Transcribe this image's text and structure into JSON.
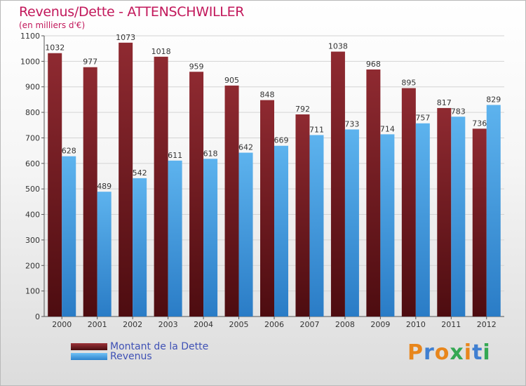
{
  "chart_data": {
    "type": "bar",
    "title": "Revenus/Dette - ATTENSCHWILLER",
    "subtitle": "(en milliers d'€)",
    "categories": [
      "2000",
      "2001",
      "2002",
      "2003",
      "2004",
      "2005",
      "2006",
      "2007",
      "2008",
      "2009",
      "2010",
      "2011",
      "2012"
    ],
    "series": [
      {
        "name": "Montant de la Dette",
        "color": "#7b1e24",
        "values": [
          1032,
          977,
          1073,
          1018,
          959,
          905,
          848,
          792,
          1038,
          968,
          895,
          817,
          736
        ]
      },
      {
        "name": "Revenus",
        "color": "#4aa3e8",
        "values": [
          628,
          489,
          542,
          611,
          618,
          642,
          669,
          711,
          733,
          714,
          757,
          783,
          829
        ]
      }
    ],
    "ylim": [
      0,
      1100
    ],
    "yticks": [
      0,
      100,
      200,
      300,
      400,
      500,
      600,
      700,
      800,
      900,
      1000,
      1100
    ],
    "grid": true,
    "legend_position": "bottom-left"
  },
  "logo": {
    "text": "Proxiti",
    "letters": [
      "P",
      "r",
      "o",
      "x",
      "i",
      "t",
      "i"
    ],
    "colors": [
      "#e8861c",
      "#3f7fd1",
      "#e8861c",
      "#35a853",
      "#e8861c",
      "#3f7fd1",
      "#35a853"
    ]
  }
}
